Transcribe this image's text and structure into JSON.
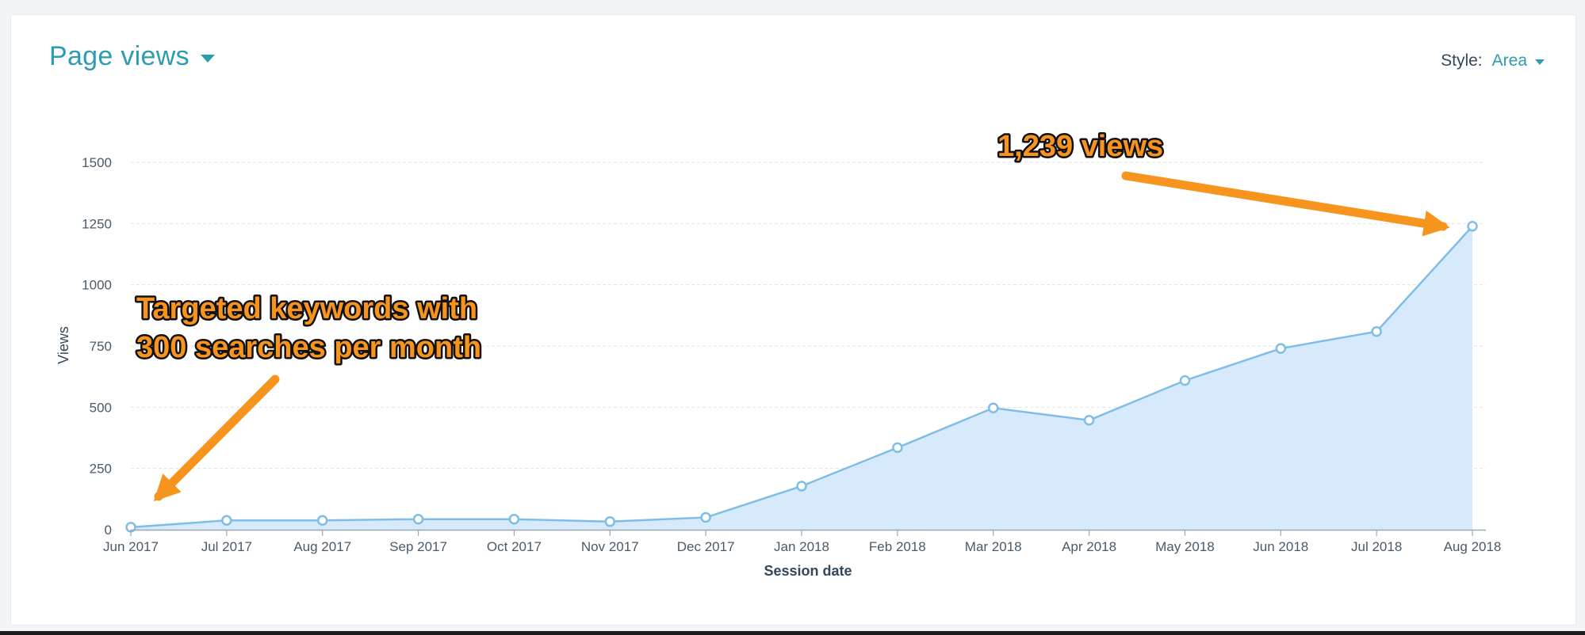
{
  "header": {
    "title": "Page views",
    "style_label": "Style:",
    "style_value": "Area"
  },
  "colors": {
    "accent": "#2d9cb0",
    "line": "#7fbde6",
    "fill": "#d6eafb",
    "annotation": "#f7941d"
  },
  "icons": {
    "title_dropdown": "caret-down-icon",
    "style_dropdown": "caret-down-icon"
  },
  "annotations": {
    "peak_label": "1,239 views",
    "start_label_line1": "Targeted keywords with",
    "start_label_line2": "300 searches per month"
  },
  "chart_data": {
    "type": "area",
    "title": "Page views",
    "xlabel": "Session date",
    "ylabel": "Views",
    "x": [
      "Jun 2017",
      "Jul 2017",
      "Aug 2017",
      "Sep 2017",
      "Oct 2017",
      "Nov 2017",
      "Dec 2017",
      "Jan 2018",
      "Feb 2018",
      "Mar 2018",
      "Apr 2018",
      "May 2018",
      "Jun 2018",
      "Jul 2018",
      "Aug 2018"
    ],
    "series": [
      {
        "values": [
          10,
          38,
          38,
          43,
          43,
          33,
          50,
          178,
          335,
          497,
          447,
          609,
          740,
          809,
          1239
        ]
      }
    ],
    "ylim": [
      0,
      1500
    ],
    "yticks": [
      0,
      250,
      500,
      750,
      1000,
      1250,
      1500
    ],
    "grid": true,
    "legend": "none"
  }
}
